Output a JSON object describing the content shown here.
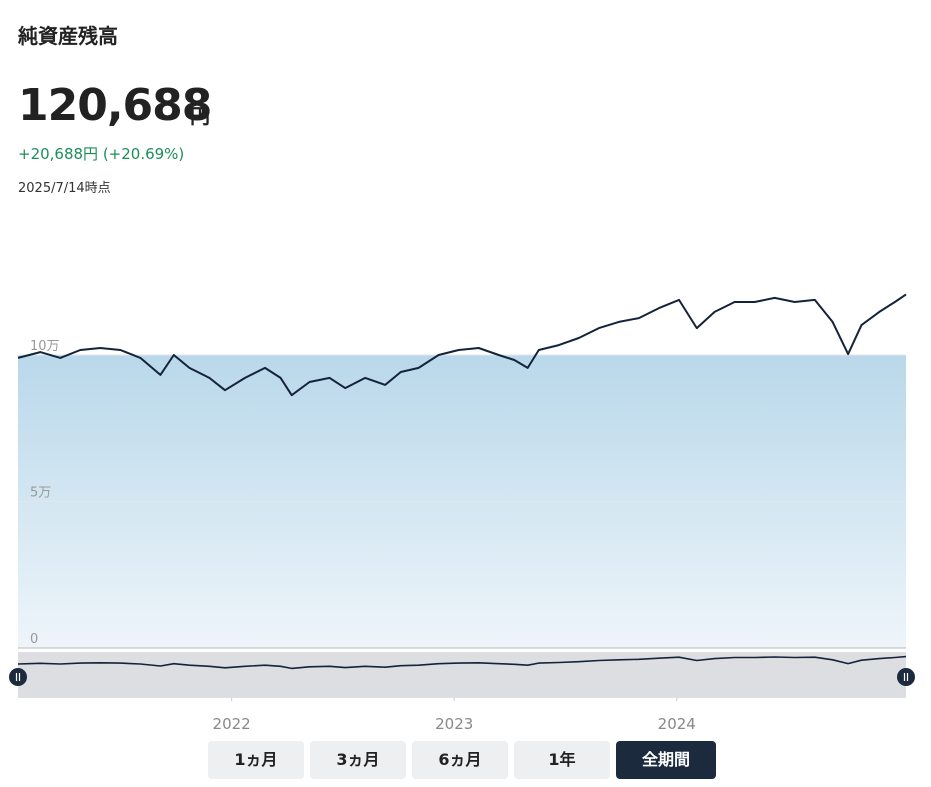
{
  "header": {
    "title": "純資産残高",
    "value": "120,688",
    "unit": "円",
    "change": "+20,688円 (+20.69%)",
    "date": "2025/7/14時点"
  },
  "chart_data": {
    "type": "line",
    "x": [
      2021.04,
      2021.14,
      2021.23,
      2021.32,
      2021.41,
      2021.5,
      2021.59,
      2021.68,
      2021.74,
      2021.81,
      2021.9,
      2021.97,
      2022.06,
      2022.15,
      2022.22,
      2022.27,
      2022.35,
      2022.44,
      2022.51,
      2022.6,
      2022.69,
      2022.76,
      2022.84,
      2022.93,
      2023.02,
      2023.11,
      2023.2,
      2023.27,
      2023.33,
      2023.38,
      2023.47,
      2023.56,
      2023.65,
      2023.74,
      2023.83,
      2023.92,
      2024.01,
      2024.09,
      2024.17,
      2024.26,
      2024.35,
      2024.44,
      2024.53,
      2024.62,
      2024.7,
      2024.77,
      2024.83,
      2024.91,
      2024.98,
      2025.03
    ],
    "series": [
      {
        "color": "#14233a",
        "values": [
          99000,
          101000,
          99000,
          101700,
          102400,
          101700,
          99000,
          93200,
          100000,
          95600,
          92200,
          88000,
          92200,
          95600,
          92200,
          86300,
          90800,
          92200,
          88700,
          92200,
          89800,
          94200,
          95600,
          100000,
          101700,
          102400,
          100000,
          98300,
          95600,
          101700,
          103400,
          105800,
          109200,
          111300,
          112600,
          116000,
          118800,
          109200,
          114700,
          118100,
          118100,
          119500,
          118100,
          118800,
          111300,
          100300,
          110200,
          114700,
          118100,
          120688
        ]
      }
    ],
    "fill_level": 100000,
    "xlim": [
      2021.04,
      2025.03
    ],
    "xticks": [
      2022,
      2023,
      2024
    ],
    "ylim": [
      0,
      134000
    ],
    "yticks": [
      0,
      {
        "value": 50000,
        "label": "5万"
      },
      {
        "value": 100000,
        "label": "10万"
      }
    ],
    "grid": true
  },
  "buttons": [
    "1ヵ月",
    "3ヵ月",
    "6ヵ月",
    "1年",
    "全期間"
  ],
  "active_button": 4
}
